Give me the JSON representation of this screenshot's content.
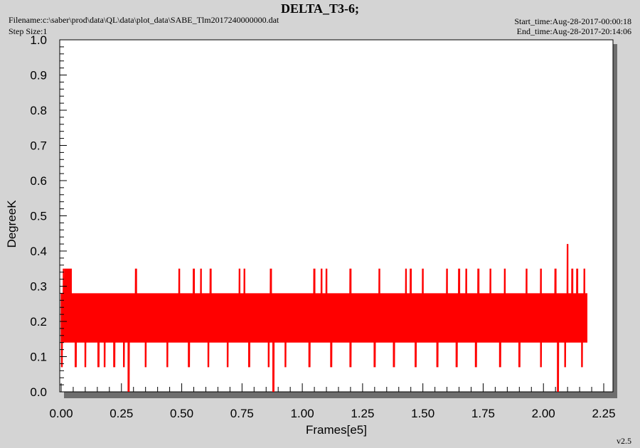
{
  "header": {
    "title": "DELTA_T3-6;",
    "filename": "Filename:c:\\saber\\prod\\data\\QL\\data\\plot_data\\SABE_Tlm2017240000000.dat",
    "step_size": "Step Size:1",
    "start_time": "Start_time:Aug-28-2017-00:00:18",
    "end_time": "End_time:Aug-28-2017-20:14:06"
  },
  "footer": {
    "version": "v2.5"
  },
  "chart_data": {
    "type": "line",
    "xlabel": "Frames[e5]",
    "ylabel": "DegreeK",
    "xlim": [
      0,
      2.25
    ],
    "ylim": [
      0,
      1.0
    ],
    "x_ticks": [
      "0.00",
      "0.25",
      "0.50",
      "0.75",
      "1.00",
      "1.25",
      "1.50",
      "1.75",
      "2.00",
      "2.25"
    ],
    "y_ticks": [
      "0.0",
      "0.1",
      "0.2",
      "0.3",
      "0.4",
      "0.5",
      "0.6",
      "0.7",
      "0.8",
      "0.9",
      "1.0"
    ],
    "grid": false,
    "series": [
      {
        "color": "#ff0000",
        "x_range": [
          0,
          2.18
        ],
        "band": {
          "low": 0.14,
          "high": 0.28
        },
        "min_spikes_x": [
          0.003,
          0.06,
          0.1,
          0.155,
          0.18,
          0.22,
          0.26,
          0.35,
          0.44,
          0.53,
          0.61,
          0.69,
          0.78,
          0.86,
          0.93,
          1.03,
          1.12,
          1.2,
          1.3,
          1.38,
          1.47,
          1.56,
          1.64,
          1.72,
          1.82,
          1.9,
          1.99,
          2.09,
          2.16
        ],
        "max_spikes_x": [
          0.01,
          0.018,
          0.025,
          0.033,
          0.04,
          0.31,
          0.49,
          0.55,
          0.58,
          0.62,
          0.74,
          0.76,
          0.87,
          1.05,
          1.08,
          1.1,
          1.2,
          1.32,
          1.43,
          1.45,
          1.5,
          1.6,
          1.65,
          1.68,
          1.73,
          1.78,
          1.84,
          1.93,
          1.99,
          2.05,
          2.12,
          2.14,
          2.17
        ],
        "low_dips": [
          {
            "x": 0.28,
            "y": 0.0
          },
          {
            "x": 0.88,
            "y": 0.0
          },
          {
            "x": 2.06,
            "y": 0.0
          }
        ],
        "peak": {
          "x": 2.1,
          "y": 0.42
        }
      }
    ]
  }
}
